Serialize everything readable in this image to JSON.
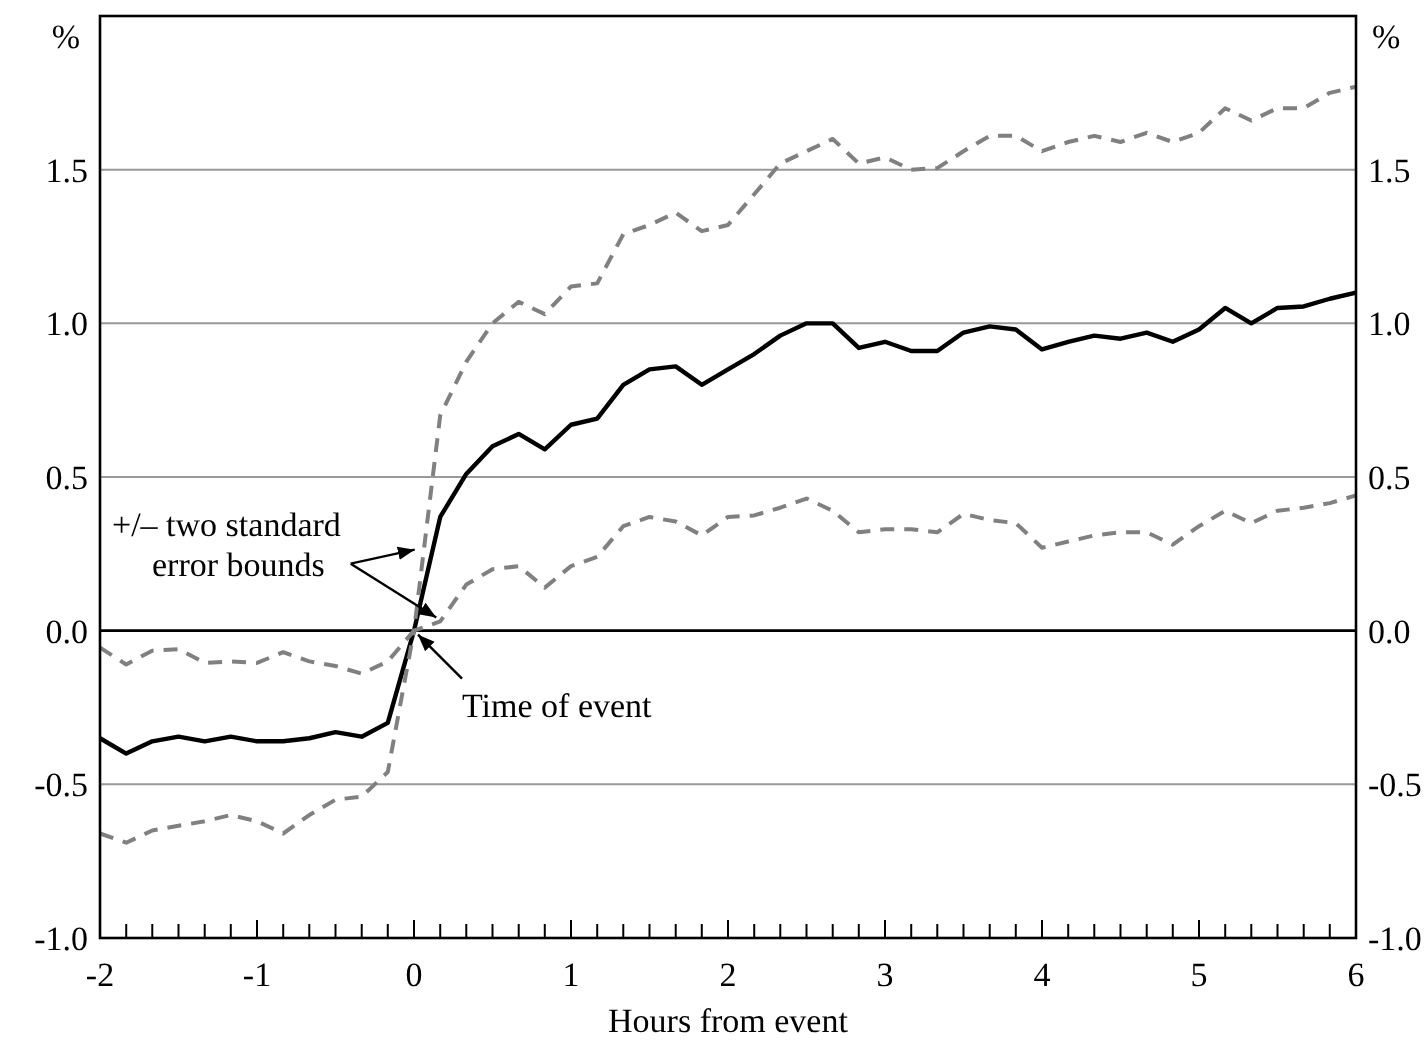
{
  "chart_data": {
    "type": "line",
    "xlabel": "Hours from event",
    "ylabel": "%",
    "y2label": "%",
    "x": [
      -2,
      -1.833,
      -1.667,
      -1.5,
      -1.333,
      -1.167,
      -1,
      -0.833,
      -0.667,
      -0.5,
      -0.333,
      -0.167,
      0,
      0.167,
      0.333,
      0.5,
      0.667,
      0.833,
      1,
      1.167,
      1.333,
      1.5,
      1.667,
      1.833,
      2,
      2.167,
      2.333,
      2.5,
      2.667,
      2.833,
      3,
      3.167,
      3.333,
      3.5,
      3.667,
      3.833,
      4,
      4.167,
      4.333,
      4.5,
      4.667,
      4.833,
      5,
      5.167,
      5.333,
      5.5,
      5.667,
      5.833,
      6
    ],
    "series": [
      {
        "color": "#000000",
        "line_style": "solid",
        "values": [
          -0.35,
          -0.4,
          -0.36,
          -0.345,
          -0.36,
          -0.345,
          -0.36,
          -0.36,
          -0.35,
          -0.33,
          -0.345,
          -0.3,
          0,
          0.37,
          0.51,
          0.6,
          0.64,
          0.59,
          0.67,
          0.69,
          0.8,
          0.85,
          0.86,
          0.8,
          0.85,
          0.9,
          0.96,
          1.0,
          1.0,
          0.92,
          0.94,
          0.91,
          0.91,
          0.97,
          0.99,
          0.98,
          0.915,
          0.94,
          0.96,
          0.95,
          0.97,
          0.94,
          0.98,
          1.05,
          1.0,
          1.05,
          1.055,
          1.08,
          1.1
        ]
      },
      {
        "color": "#808080",
        "line_style": "dashed",
        "values": [
          -0.055,
          -0.11,
          -0.065,
          -0.06,
          -0.105,
          -0.1,
          -0.105,
          -0.07,
          -0.1,
          -0.115,
          -0.14,
          -0.1,
          0,
          0.7,
          0.875,
          1.0,
          1.07,
          1.03,
          1.12,
          1.13,
          1.29,
          1.32,
          1.36,
          1.3,
          1.32,
          1.42,
          1.52,
          1.56,
          1.6,
          1.52,
          1.54,
          1.5,
          1.505,
          1.56,
          1.61,
          1.61,
          1.56,
          1.59,
          1.61,
          1.59,
          1.62,
          1.59,
          1.62,
          1.7,
          1.66,
          1.7,
          1.7,
          1.75,
          1.77
        ]
      },
      {
        "color": "#808080",
        "line_style": "dashed",
        "values": [
          -0.66,
          -0.69,
          -0.65,
          -0.635,
          -0.62,
          -0.6,
          -0.62,
          -0.66,
          -0.6,
          -0.55,
          -0.54,
          -0.46,
          0,
          0.03,
          0.15,
          0.2,
          0.21,
          0.14,
          0.21,
          0.24,
          0.34,
          0.37,
          0.355,
          0.31,
          0.37,
          0.375,
          0.4,
          0.43,
          0.39,
          0.32,
          0.33,
          0.33,
          0.32,
          0.38,
          0.36,
          0.35,
          0.27,
          0.29,
          0.31,
          0.32,
          0.32,
          0.28,
          0.34,
          0.39,
          0.35,
          0.39,
          0.4,
          0.415,
          0.44
        ]
      }
    ],
    "xlim": [
      -2,
      6
    ],
    "xticks": [
      -2,
      {
        "value": -1.833,
        "label": null
      },
      {
        "value": -1.667,
        "label": null
      },
      {
        "value": -1.5,
        "label": null
      },
      {
        "value": -1.333,
        "label": null
      },
      {
        "value": -1.167,
        "label": null
      },
      -1,
      {
        "value": -0.833,
        "label": null
      },
      {
        "value": -0.667,
        "label": null
      },
      {
        "value": -0.5,
        "label": null
      },
      {
        "value": -0.333,
        "label": null
      },
      {
        "value": -0.167,
        "label": null
      },
      0,
      {
        "value": 0.167,
        "label": null
      },
      {
        "value": 0.333,
        "label": null
      },
      {
        "value": 0.5,
        "label": null
      },
      {
        "value": 0.667,
        "label": null
      },
      {
        "value": 0.833,
        "label": null
      },
      1,
      {
        "value": 1.167,
        "label": null
      },
      {
        "value": 1.333,
        "label": null
      },
      {
        "value": 1.5,
        "label": null
      },
      {
        "value": 1.667,
        "label": null
      },
      {
        "value": 1.833,
        "label": null
      },
      2,
      {
        "value": 2.167,
        "label": null
      },
      {
        "value": 2.333,
        "label": null
      },
      {
        "value": 2.5,
        "label": null
      },
      {
        "value": 2.667,
        "label": null
      },
      {
        "value": 2.833,
        "label": null
      },
      3,
      {
        "value": 3.167,
        "label": null
      },
      {
        "value": 3.333,
        "label": null
      },
      {
        "value": 3.5,
        "label": null
      },
      {
        "value": 3.667,
        "label": null
      },
      {
        "value": 3.833,
        "label": null
      },
      4,
      {
        "value": 4.167,
        "label": null
      },
      {
        "value": 4.333,
        "label": null
      },
      {
        "value": 4.5,
        "label": null
      },
      {
        "value": 4.667,
        "label": null
      },
      {
        "value": 4.833,
        "label": null
      },
      5,
      {
        "value": 5.167,
        "label": null
      },
      {
        "value": 5.333,
        "label": null
      },
      {
        "value": 5.5,
        "label": null
      },
      {
        "value": 5.667,
        "label": null
      },
      {
        "value": 5.833,
        "label": null
      },
      6
    ],
    "ylim": [
      -1,
      2
    ],
    "yticks": [
      {
        "value": -1,
        "label": "-1.0"
      },
      {
        "value": -0.5,
        "label": "-0.5"
      },
      {
        "value": 0,
        "label": "0.0"
      },
      {
        "value": 0.5,
        "label": "0.5"
      },
      {
        "value": 1,
        "label": "1.0"
      },
      {
        "value": 1.5,
        "label": "1.5"
      }
    ],
    "y2lim": [
      -1,
      2
    ],
    "y2ticks": [
      {
        "value": -1,
        "label": "-1.0"
      },
      {
        "value": -0.5,
        "label": "-0.5"
      },
      {
        "value": 0,
        "label": "0.0"
      },
      {
        "value": 0.5,
        "label": "0.5"
      },
      {
        "value": 1,
        "label": "1.0"
      },
      {
        "value": 1.5,
        "label": "1.5"
      }
    ],
    "grid": "y",
    "ref_lines": [
      {
        "axis": "y",
        "value": 0,
        "color": "#000000"
      }
    ],
    "annotations": [
      {
        "text": "+/– two standard error bounds",
        "x": 0.03,
        "y": 0.27
      },
      {
        "text": "Time of event",
        "x": 0,
        "y": 0
      }
    ]
  }
}
